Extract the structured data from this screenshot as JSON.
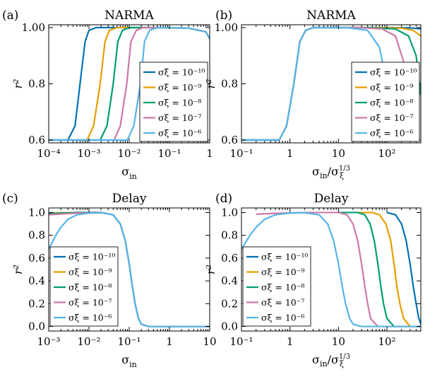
{
  "colors": {
    "sigma_1e-10": "#0072b2",
    "sigma_1e-9": "#e69f00",
    "sigma_1e-8": "#009e73",
    "sigma_1e-7": "#cc79a7",
    "sigma_1e-6": "#56b4e9"
  },
  "legend_labels": [
    "σξ = 10⁻¹⁰",
    "σξ = 10⁻⁹",
    "σξ = 10⁻⁸",
    "σξ = 10⁻⁷",
    "σξ = 10⁻⁶"
  ],
  "chart_data": [
    {
      "panel": "(a)",
      "title": "NARMA",
      "type": "line",
      "xscale": "log",
      "xlim": [
        0.0001,
        1
      ],
      "ylim": [
        0.59,
        1.01
      ],
      "xlabel": "σin",
      "ylabel": "r²",
      "xticks": [
        {
          "v": 0.0001,
          "label": "10⁻⁴"
        },
        {
          "v": 0.001,
          "label": "10⁻³"
        },
        {
          "v": 0.01,
          "label": "10⁻²"
        },
        {
          "v": 0.1,
          "label": "10⁻¹"
        },
        {
          "v": 1,
          "label": "1"
        }
      ],
      "yticks": [
        {
          "v": 0.6,
          "label": "0.6"
        },
        {
          "v": 0.8,
          "label": "0.8"
        },
        {
          "v": 1.0,
          "label": "1.00"
        }
      ],
      "legend_position": "center-right",
      "series": [
        {
          "name": "σξ = 10⁻¹⁰",
          "x": [
            0.0001,
            0.0003,
            0.00045,
            0.0006,
            0.0008,
            0.001,
            0.0015,
            0.002,
            0.01,
            0.05,
            0.3,
            0.8,
            1.0
          ],
          "y": [
            0.6,
            0.6,
            0.65,
            0.8,
            0.95,
            0.99,
            1.0,
            1.0,
            1.0,
            1.0,
            0.998,
            0.985,
            0.96
          ]
        },
        {
          "name": "σξ = 10⁻⁹",
          "x": [
            0.0001,
            0.0009,
            0.0013,
            0.0019,
            0.0025,
            0.0032,
            0.005,
            0.007,
            0.03,
            0.3,
            0.8,
            1.0
          ],
          "y": [
            0.6,
            0.6,
            0.65,
            0.8,
            0.95,
            0.99,
            1.0,
            1.0,
            1.0,
            0.998,
            0.985,
            0.96
          ]
        },
        {
          "name": "σξ = 10⁻⁸",
          "x": [
            0.0001,
            0.0019,
            0.0028,
            0.004,
            0.0052,
            0.0068,
            0.01,
            0.015,
            0.05,
            0.3,
            0.8,
            1.0
          ],
          "y": [
            0.6,
            0.6,
            0.65,
            0.8,
            0.95,
            0.99,
            1.0,
            1.0,
            1.0,
            0.998,
            0.985,
            0.96
          ]
        },
        {
          "name": "σξ = 10⁻⁷",
          "x": [
            0.0001,
            0.0042,
            0.006,
            0.0087,
            0.011,
            0.015,
            0.022,
            0.03,
            0.1,
            0.3,
            0.8,
            1.0
          ],
          "y": [
            0.6,
            0.6,
            0.65,
            0.8,
            0.95,
            0.99,
            1.0,
            1.0,
            1.0,
            0.998,
            0.985,
            0.96
          ]
        },
        {
          "name": "σξ = 10⁻⁶",
          "x": [
            0.0001,
            0.009,
            0.013,
            0.019,
            0.024,
            0.032,
            0.045,
            0.06,
            0.1,
            0.3,
            0.8,
            1.0
          ],
          "y": [
            0.6,
            0.6,
            0.65,
            0.8,
            0.95,
            0.99,
            0.998,
            1.0,
            1.0,
            0.998,
            0.985,
            0.96
          ]
        }
      ]
    },
    {
      "panel": "(b)",
      "title": "NARMA",
      "type": "line",
      "xscale": "log",
      "xlim": [
        0.1,
        500
      ],
      "ylim": [
        0.59,
        1.01
      ],
      "xlabel": "σin/σξ^1/3",
      "ylabel": "r²",
      "xticks": [
        {
          "v": 0.1,
          "label": "10⁻¹"
        },
        {
          "v": 1,
          "label": "1"
        },
        {
          "v": 10,
          "label": "10"
        },
        {
          "v": 100,
          "label": "10²"
        }
      ],
      "yticks": [
        {
          "v": 0.6,
          "label": "0.6"
        },
        {
          "v": 0.8,
          "label": "0.8"
        },
        {
          "v": 1.0,
          "label": "1.00"
        }
      ],
      "legend_position": "lower-right",
      "series": [
        {
          "name": "σξ = 10⁻¹⁰",
          "x": [
            0.1,
            0.6,
            0.85,
            1.2,
            1.6,
            2.1,
            3,
            5,
            100,
            300,
            450,
            500
          ],
          "y": [
            0.6,
            0.6,
            0.65,
            0.8,
            0.95,
            0.99,
            1.0,
            1.0,
            1.0,
            0.999,
            0.996,
            0.995
          ]
        },
        {
          "name": "σξ = 10⁻⁹",
          "x": [
            0.1,
            0.6,
            0.85,
            1.2,
            1.6,
            2.1,
            3,
            5,
            60,
            200,
            350,
            500
          ],
          "y": [
            0.6,
            0.6,
            0.65,
            0.8,
            0.95,
            0.99,
            1.0,
            1.0,
            1.0,
            0.998,
            0.99,
            0.97
          ]
        },
        {
          "name": "σξ = 10⁻⁸",
          "x": [
            0.1,
            0.6,
            0.85,
            1.2,
            1.6,
            2.1,
            3,
            5,
            40,
            150,
            280,
            400,
            500
          ],
          "y": [
            0.6,
            0.6,
            0.65,
            0.8,
            0.95,
            0.99,
            1.0,
            1.0,
            1.0,
            0.995,
            0.97,
            0.9,
            0.76
          ]
        },
        {
          "name": "σξ = 10⁻⁷",
          "x": [
            0.1,
            0.6,
            0.85,
            1.2,
            1.6,
            2.1,
            3,
            5,
            25,
            80,
            150,
            220,
            300
          ],
          "y": [
            0.6,
            0.6,
            0.65,
            0.8,
            0.95,
            0.99,
            1.0,
            1.0,
            1.0,
            0.995,
            0.97,
            0.88,
            0.6
          ]
        },
        {
          "name": "σξ = 10⁻⁶",
          "x": [
            0.1,
            0.6,
            0.85,
            1.2,
            1.6,
            2.1,
            3,
            5,
            15,
            40,
            70,
            100,
            140
          ],
          "y": [
            0.6,
            0.6,
            0.65,
            0.8,
            0.95,
            0.99,
            1.0,
            1.0,
            1.0,
            0.99,
            0.93,
            0.8,
            0.6
          ]
        }
      ]
    },
    {
      "panel": "(c)",
      "title": "Delay",
      "type": "line",
      "xscale": "log",
      "xlim": [
        0.001,
        10
      ],
      "ylim": [
        -0.04,
        1.04
      ],
      "xlabel": "σin",
      "ylabel": "r²",
      "xticks": [
        {
          "v": 0.001,
          "label": "10⁻³"
        },
        {
          "v": 0.01,
          "label": "10⁻²"
        },
        {
          "v": 0.1,
          "label": "10⁻¹"
        },
        {
          "v": 1,
          "label": "1"
        },
        {
          "v": 10,
          "label": "10"
        }
      ],
      "yticks": [
        {
          "v": 0.0,
          "label": "0.0"
        },
        {
          "v": 0.2,
          "label": "0.2"
        },
        {
          "v": 0.4,
          "label": "0.4"
        },
        {
          "v": 0.6,
          "label": "0.6"
        },
        {
          "v": 0.8,
          "label": "0.8"
        },
        {
          "v": 1.0,
          "label": "1.0"
        }
      ],
      "legend_position": "lower-left",
      "series": [
        {
          "name": "σξ = 10⁻¹⁰",
          "x": [
            0.001,
            0.005,
            0.02,
            0.04,
            0.06,
            0.08,
            0.1,
            0.12,
            0.14,
            0.17,
            0.2,
            0.3,
            10
          ],
          "y": [
            0.995,
            1.0,
            1.0,
            0.98,
            0.9,
            0.75,
            0.55,
            0.35,
            0.2,
            0.07,
            0.02,
            0.0,
            0.0
          ]
        },
        {
          "name": "σξ = 10⁻⁹",
          "x": [
            0.001,
            0.005,
            0.02,
            0.04,
            0.06,
            0.08,
            0.1,
            0.12,
            0.14,
            0.17,
            0.2,
            0.3,
            10
          ],
          "y": [
            0.995,
            1.0,
            1.0,
            0.98,
            0.9,
            0.75,
            0.55,
            0.35,
            0.2,
            0.07,
            0.02,
            0.0,
            0.0
          ]
        },
        {
          "name": "σξ = 10⁻⁸",
          "x": [
            0.001,
            0.005,
            0.02,
            0.04,
            0.06,
            0.08,
            0.1,
            0.12,
            0.14,
            0.17,
            0.2,
            0.3,
            10
          ],
          "y": [
            0.99,
            1.0,
            1.0,
            0.98,
            0.9,
            0.75,
            0.55,
            0.35,
            0.2,
            0.07,
            0.02,
            0.0,
            0.0
          ]
        },
        {
          "name": "σξ = 10⁻⁷",
          "x": [
            0.001,
            0.005,
            0.02,
            0.04,
            0.06,
            0.08,
            0.1,
            0.12,
            0.14,
            0.17,
            0.2,
            0.3,
            10
          ],
          "y": [
            0.98,
            0.995,
            1.0,
            0.98,
            0.9,
            0.75,
            0.55,
            0.35,
            0.2,
            0.07,
            0.02,
            0.0,
            0.0
          ]
        },
        {
          "name": "σξ = 10⁻⁶",
          "x": [
            0.001,
            0.0015,
            0.002,
            0.003,
            0.005,
            0.01,
            0.02,
            0.04,
            0.06,
            0.08,
            0.1,
            0.12,
            0.14,
            0.17,
            0.2,
            0.3,
            10
          ],
          "y": [
            0.68,
            0.8,
            0.87,
            0.94,
            0.98,
            0.995,
            0.998,
            0.98,
            0.9,
            0.75,
            0.55,
            0.35,
            0.2,
            0.07,
            0.02,
            0.0,
            0.0
          ]
        }
      ]
    },
    {
      "panel": "(d)",
      "title": "Delay",
      "type": "line",
      "xscale": "log",
      "xlim": [
        0.1,
        500
      ],
      "ylim": [
        -0.04,
        1.04
      ],
      "xlabel": "σin/σξ^1/3",
      "ylabel": "r²",
      "xticks": [
        {
          "v": 0.1,
          "label": "10⁻¹"
        },
        {
          "v": 1,
          "label": "1"
        },
        {
          "v": 10,
          "label": "10"
        },
        {
          "v": 100,
          "label": "10²"
        }
      ],
      "yticks": [
        {
          "v": 0.0,
          "label": "0.0"
        },
        {
          "v": 0.2,
          "label": "0.2"
        },
        {
          "v": 0.4,
          "label": "0.4"
        },
        {
          "v": 0.6,
          "label": "0.6"
        },
        {
          "v": 0.8,
          "label": "0.8"
        },
        {
          "v": 1.0,
          "label": "1.0"
        }
      ],
      "legend_position": "lower-left",
      "series": [
        {
          "name": "σξ = 10⁻¹⁰",
          "x": [
            100,
            150,
            200,
            250,
            300,
            350,
            400,
            450,
            500
          ],
          "y": [
            1.0,
            0.98,
            0.9,
            0.75,
            0.55,
            0.35,
            0.2,
            0.08,
            0.02
          ]
        },
        {
          "name": "σξ = 10⁻⁹",
          "x": [
            20,
            50,
            70,
            95,
            120,
            140,
            160,
            185,
            220,
            300,
            500
          ],
          "y": [
            1.0,
            1.0,
            0.98,
            0.9,
            0.75,
            0.55,
            0.35,
            0.2,
            0.07,
            0.0,
            0.0
          ]
        },
        {
          "name": "σξ = 10⁻⁸",
          "x": [
            10,
            25,
            35,
            45,
            55,
            65,
            75,
            85,
            100,
            140,
            500
          ],
          "y": [
            1.0,
            1.0,
            0.98,
            0.9,
            0.75,
            0.55,
            0.35,
            0.2,
            0.07,
            0.0,
            0.0
          ]
        },
        {
          "name": "σξ = 10⁻⁷",
          "x": [
            0.2,
            0.5,
            2,
            10,
            15,
            20,
            25,
            30,
            35,
            40,
            46,
            65,
            500
          ],
          "y": [
            0.985,
            0.993,
            1.0,
            1.0,
            0.98,
            0.9,
            0.75,
            0.55,
            0.35,
            0.2,
            0.07,
            0.0,
            0.0
          ]
        },
        {
          "name": "σξ = 10⁻⁶",
          "x": [
            0.1,
            0.15,
            0.2,
            0.3,
            0.5,
            1,
            2,
            4,
            6,
            8,
            10,
            12,
            14,
            17,
            20,
            30,
            500
          ],
          "y": [
            0.68,
            0.8,
            0.87,
            0.94,
            0.98,
            0.995,
            0.998,
            0.98,
            0.9,
            0.75,
            0.55,
            0.35,
            0.2,
            0.07,
            0.02,
            0.0,
            0.0
          ]
        }
      ]
    }
  ]
}
